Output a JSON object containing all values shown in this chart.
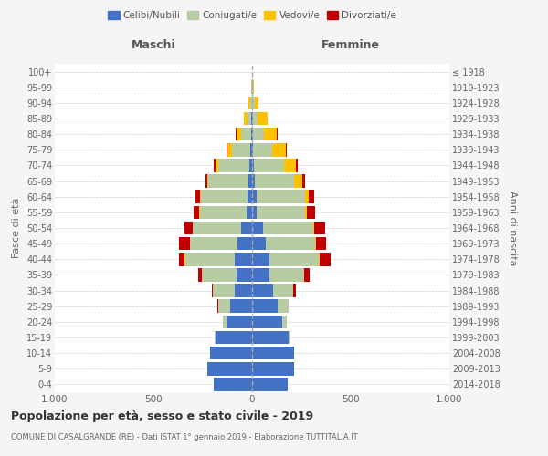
{
  "age_groups": [
    "0-4",
    "5-9",
    "10-14",
    "15-19",
    "20-24",
    "25-29",
    "30-34",
    "35-39",
    "40-44",
    "45-49",
    "50-54",
    "55-59",
    "60-64",
    "65-69",
    "70-74",
    "75-79",
    "80-84",
    "85-89",
    "90-94",
    "95-99",
    "100+"
  ],
  "birth_years": [
    "2014-2018",
    "2009-2013",
    "2004-2008",
    "1999-2003",
    "1994-1998",
    "1989-1993",
    "1984-1988",
    "1979-1983",
    "1974-1978",
    "1969-1973",
    "1964-1968",
    "1959-1963",
    "1954-1958",
    "1949-1953",
    "1944-1948",
    "1939-1943",
    "1934-1938",
    "1929-1933",
    "1924-1928",
    "1919-1923",
    "≤ 1918"
  ],
  "male": {
    "single": [
      195,
      225,
      215,
      185,
      130,
      110,
      90,
      80,
      90,
      75,
      55,
      30,
      25,
      20,
      15,
      8,
      5,
      3,
      2,
      1,
      0
    ],
    "married": [
      0,
      0,
      0,
      5,
      20,
      60,
      110,
      175,
      250,
      240,
      245,
      235,
      235,
      200,
      155,
      95,
      50,
      20,
      8,
      2,
      0
    ],
    "widowed": [
      0,
      0,
      0,
      0,
      0,
      2,
      0,
      0,
      1,
      1,
      2,
      3,
      5,
      5,
      15,
      20,
      25,
      20,
      8,
      2,
      0
    ],
    "divorced": [
      0,
      0,
      0,
      0,
      0,
      2,
      5,
      20,
      30,
      55,
      40,
      30,
      20,
      10,
      10,
      8,
      5,
      0,
      0,
      0,
      0
    ]
  },
  "female": {
    "single": [
      180,
      215,
      215,
      185,
      155,
      130,
      105,
      90,
      90,
      70,
      55,
      25,
      25,
      15,
      10,
      5,
      4,
      3,
      2,
      1,
      0
    ],
    "married": [
      0,
      0,
      0,
      5,
      20,
      55,
      105,
      175,
      250,
      250,
      255,
      245,
      245,
      200,
      150,
      95,
      55,
      25,
      10,
      3,
      0
    ],
    "widowed": [
      0,
      0,
      0,
      0,
      0,
      0,
      0,
      0,
      2,
      2,
      5,
      8,
      15,
      40,
      60,
      70,
      65,
      50,
      20,
      5,
      0
    ],
    "divorced": [
      0,
      0,
      0,
      0,
      2,
      2,
      10,
      25,
      55,
      55,
      55,
      40,
      30,
      15,
      10,
      8,
      5,
      0,
      0,
      0,
      0
    ]
  },
  "colors": {
    "single": "#4472c4",
    "married": "#b8cca4",
    "widowed": "#ffc000",
    "divorced": "#c00000"
  },
  "legend_labels": [
    "Celibi/Nubili",
    "Coniugati/e",
    "Vedovi/e",
    "Divorziati/e"
  ],
  "title": "Popolazione per età, sesso e stato civile - 2019",
  "subtitle": "COMUNE DI CASALGRANDE (RE) - Dati ISTAT 1° gennaio 2019 - Elaborazione TUTTITALIA.IT",
  "xlabel_left": "Maschi",
  "xlabel_right": "Femmine",
  "ylabel_left": "Fasce di età",
  "ylabel_right": "Anni di nascita",
  "xlim": 1000,
  "bg_color": "#f5f5f5",
  "plot_bg": "#ffffff"
}
